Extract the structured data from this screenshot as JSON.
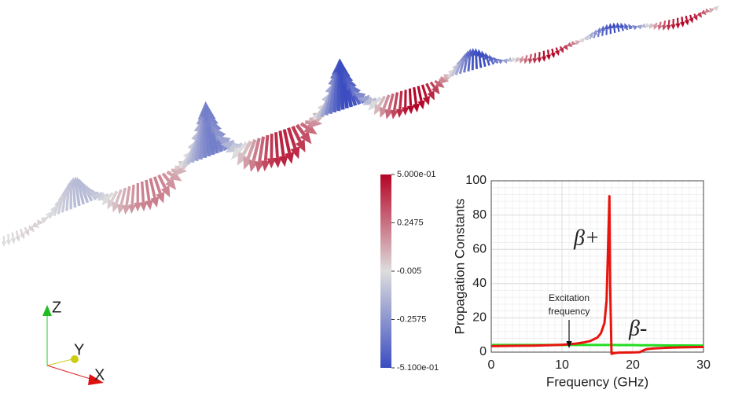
{
  "chart_data": [
    {
      "type": "line",
      "xlabel": "Frequency (GHz)",
      "ylabel": "Propagation Constants",
      "xlim": [
        0,
        30
      ],
      "ylim": [
        0,
        100
      ],
      "xticks": [
        0,
        10,
        20,
        30
      ],
      "yticks": [
        0,
        20,
        40,
        60,
        80,
        100
      ],
      "grid": true,
      "x": [
        0,
        2,
        4,
        6,
        8,
        10,
        11,
        12,
        13,
        14,
        15,
        15.5,
        16,
        16.3,
        16.5,
        16.7,
        16.8,
        17,
        17.5,
        18,
        20,
        21,
        21.5,
        22,
        23,
        25,
        27,
        30
      ],
      "series": [
        {
          "name": "β+",
          "color": "#e8150f",
          "values": [
            3.5,
            3.6,
            3.7,
            3.8,
            4,
            4.3,
            4.6,
            5,
            5.6,
            6.5,
            8.5,
            11,
            17,
            30,
            60,
            91,
            40,
            -1,
            -0.5,
            -0.3,
            -0.2,
            0,
            1,
            1.8,
            2.2,
            2.6,
            2.8,
            3
          ]
        },
        {
          "name": "β-",
          "color": "#22dd22",
          "values": [
            4.2,
            4.2,
            4.2,
            4.2,
            4.2,
            4.2,
            4.2,
            4.2,
            4.2,
            4.2,
            4.2,
            4.2,
            4.2,
            4.2,
            4.2,
            4.2,
            4.2,
            4.2,
            4.2,
            4.1,
            4.1,
            4,
            4,
            4,
            4,
            3.9,
            3.9,
            3.8
          ]
        }
      ],
      "annotation": {
        "lines": [
          "Excitation",
          "frequency"
        ],
        "x": 11
      }
    },
    {
      "type": "colorbar",
      "ylim": [
        -0.51,
        0.5
      ],
      "yticks": [
        {
          "value": 0.5,
          "label": "5.000e-01"
        },
        0.2475,
        -0.005,
        -0.2575,
        {
          "value": -0.51,
          "label": "-5.100e-01"
        }
      ],
      "colors": [
        "#3b4cc0",
        "#dddddd",
        "#b40426"
      ]
    }
  ],
  "axes_triad": {
    "z": "Z",
    "y": "Y",
    "x": "X"
  }
}
